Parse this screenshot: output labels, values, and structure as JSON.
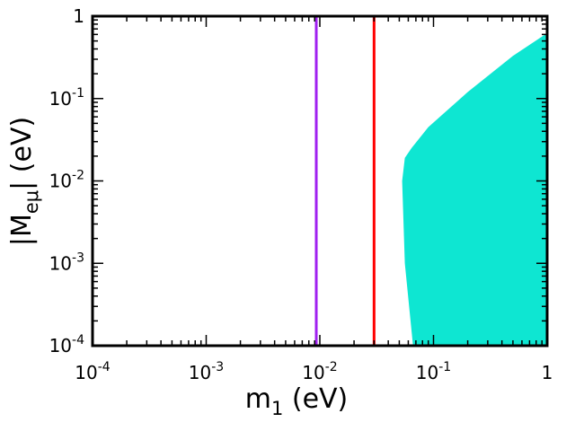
{
  "chart_data": {
    "type": "scatter",
    "title": "",
    "xlabel": "m",
    "xlabel_sub": "1",
    "xlabel_unit": " (eV)",
    "ylabel": "|M",
    "ylabel_sub": "eμ",
    "ylabel_unit": "| (eV)",
    "xscale": "log",
    "yscale": "log",
    "xlim": [
      0.0001,
      1
    ],
    "ylim": [
      0.0001,
      1
    ],
    "grid": false,
    "legend": "none",
    "x_ticks": [
      {
        "value": 0.0001,
        "base": "10",
        "exp": "-4"
      },
      {
        "value": 0.001,
        "base": "10",
        "exp": "-3"
      },
      {
        "value": 0.01,
        "base": "10",
        "exp": "-2"
      },
      {
        "value": 0.1,
        "base": "10",
        "exp": "-1"
      },
      {
        "value": 1,
        "base": "1",
        "exp": ""
      }
    ],
    "y_ticks": [
      {
        "value": 0.0001,
        "base": "10",
        "exp": "-4"
      },
      {
        "value": 0.001,
        "base": "10",
        "exp": "-3"
      },
      {
        "value": 0.01,
        "base": "10",
        "exp": "-2"
      },
      {
        "value": 0.1,
        "base": "10",
        "exp": "-1"
      },
      {
        "value": 1,
        "base": "1",
        "exp": ""
      }
    ],
    "vertical_lines": [
      {
        "x": 0.0093,
        "color": "#a020f0"
      },
      {
        "x": 0.03,
        "color": "#ff0000"
      }
    ],
    "region": {
      "color": "#0ee6d2",
      "boundary": [
        [
          0.066,
          0.0001
        ],
        [
          0.056,
          0.001
        ],
        [
          0.053,
          0.01
        ],
        [
          0.056,
          0.019
        ],
        [
          0.064,
          0.025
        ],
        [
          0.09,
          0.045
        ],
        [
          0.2,
          0.12
        ],
        [
          0.5,
          0.33
        ],
        [
          0.96,
          0.6
        ],
        [
          1,
          0.6
        ],
        [
          1,
          0.0001
        ]
      ]
    }
  }
}
